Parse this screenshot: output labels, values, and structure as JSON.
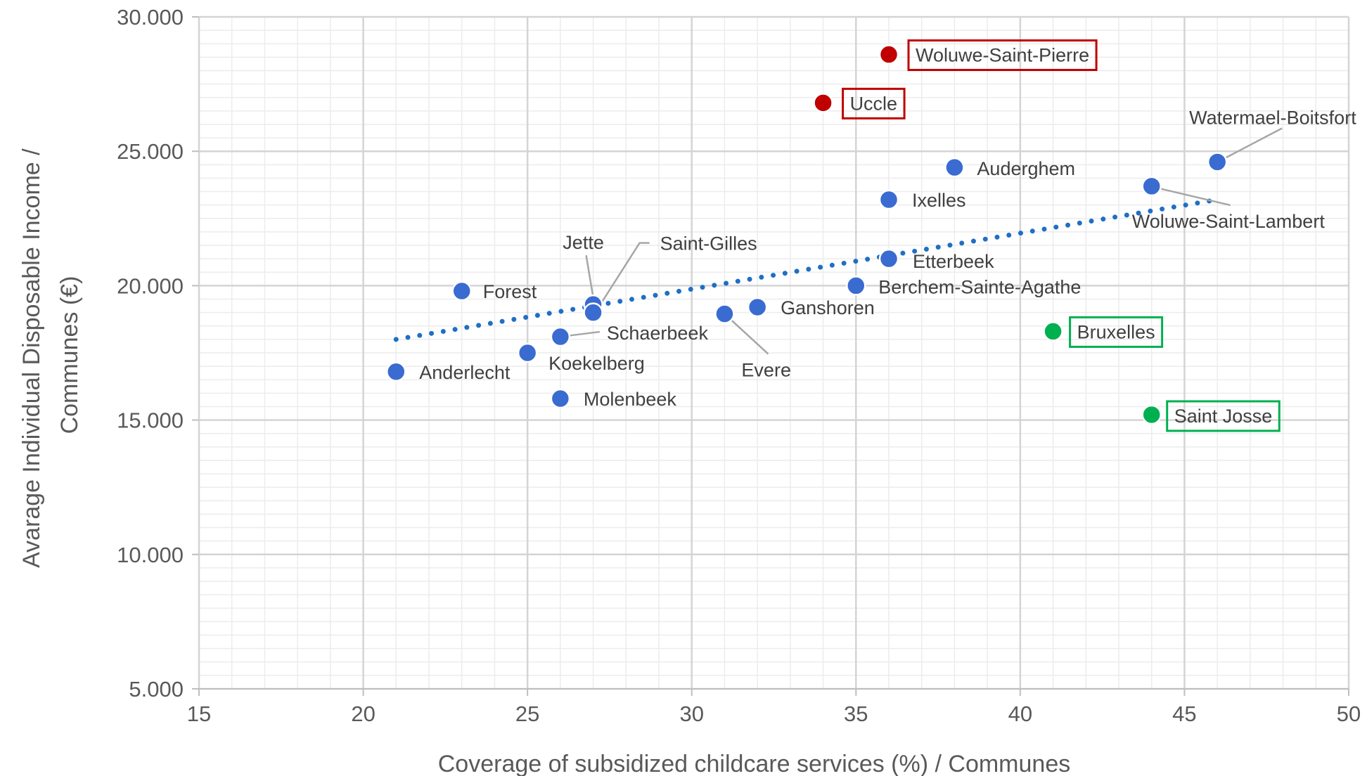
{
  "chart_data": {
    "type": "scatter",
    "xlabel": "Coverage of subsidized childcare services (%) / Communes",
    "ylabel": [
      "Avarage Individual Disposable Income /",
      "Communes (€)"
    ],
    "xlim": [
      15,
      50
    ],
    "ylim": [
      5000,
      30000
    ],
    "x_ticks": [
      15,
      20,
      25,
      30,
      35,
      40,
      45,
      50
    ],
    "x_tick_labels": [
      "15",
      "20",
      "25",
      "30",
      "35",
      "40",
      "45",
      "50"
    ],
    "y_ticks": [
      5000,
      10000,
      15000,
      20000,
      25000,
      30000
    ],
    "y_tick_labels": [
      "5.000",
      "10.000",
      "15.000",
      "20.000",
      "25.000",
      "30.000"
    ],
    "grid": "major and minor",
    "trendline": {
      "style": "dotted",
      "color": "#1f6fc5",
      "from": [
        21,
        18000
      ],
      "to": [
        46,
        23200
      ]
    },
    "colors": {
      "default": "#3a6bd1",
      "high_income": "#c00000",
      "low_income": "#00b050"
    },
    "points": [
      {
        "label": "Woluwe-Saint-Pierre",
        "x": 36,
        "y": 28600,
        "group": "high_income",
        "boxed": true
      },
      {
        "label": "Uccle",
        "x": 34,
        "y": 26800,
        "group": "high_income",
        "boxed": true
      },
      {
        "label": "Watermael-Boitsfort",
        "x": 46,
        "y": 24600,
        "group": "default",
        "leader": true
      },
      {
        "label": "Auderghem",
        "x": 38,
        "y": 24400,
        "group": "default"
      },
      {
        "label": "Woluwe-Saint-Lambert",
        "x": 44,
        "y": 23700,
        "group": "default",
        "leader": true
      },
      {
        "label": "Ixelles",
        "x": 36,
        "y": 23200,
        "group": "default"
      },
      {
        "label": "Etterbeek",
        "x": 36,
        "y": 21000,
        "group": "default"
      },
      {
        "label": "Berchem-Sainte-Agathe",
        "x": 35,
        "y": 20000,
        "group": "default"
      },
      {
        "label": "Forest",
        "x": 23,
        "y": 19800,
        "group": "default"
      },
      {
        "label": "Jette",
        "x": 27,
        "y": 19300,
        "group": "default",
        "leader": true
      },
      {
        "label": "Saint-Gilles",
        "x": 27,
        "y": 19000,
        "group": "default",
        "leader": true
      },
      {
        "label": "Ganshoren",
        "x": 32,
        "y": 19200,
        "group": "default"
      },
      {
        "label": "Evere",
        "x": 31,
        "y": 18950,
        "group": "default",
        "leader": true
      },
      {
        "label": "Schaerbeek",
        "x": 26,
        "y": 18100,
        "group": "default",
        "leader": true
      },
      {
        "label": "Koekelberg",
        "x": 25,
        "y": 17500,
        "group": "default"
      },
      {
        "label": "Anderlecht",
        "x": 21,
        "y": 16800,
        "group": "default"
      },
      {
        "label": "Molenbeek",
        "x": 26,
        "y": 15800,
        "group": "default"
      },
      {
        "label": "Bruxelles",
        "x": 41,
        "y": 18300,
        "group": "low_income",
        "boxed": true
      },
      {
        "label": "Saint Josse",
        "x": 44,
        "y": 15200,
        "group": "low_income",
        "boxed": true
      }
    ]
  }
}
